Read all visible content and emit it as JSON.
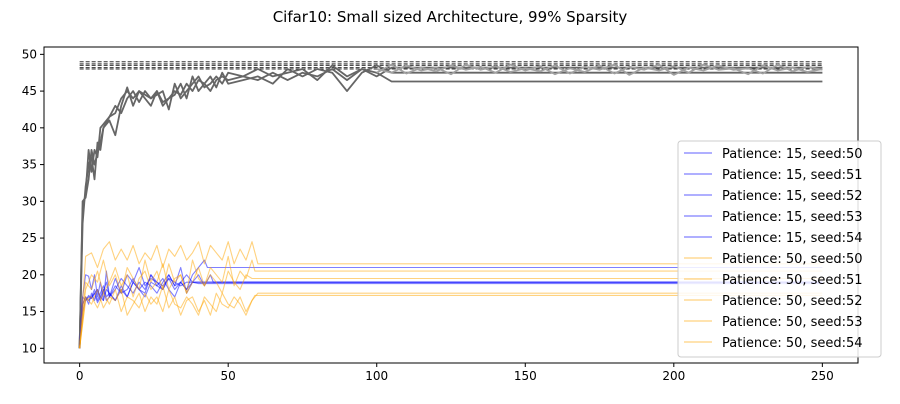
{
  "chart_data": {
    "type": "line",
    "title": "Cifar10: Small sized Architecture, 99% Sparsity",
    "xlabel": "",
    "ylabel": "",
    "xlim": [
      -12,
      262
    ],
    "ylim": [
      8,
      51
    ],
    "x_ticks": [
      0,
      50,
      100,
      150,
      200,
      250
    ],
    "y_ticks": [
      10,
      15,
      20,
      25,
      30,
      35,
      40,
      45,
      50
    ],
    "grid": false,
    "legend_position": "center-right",
    "colors": {
      "blue": "#0000ff",
      "orange": "#ffa500",
      "gray": "#666666",
      "light_gray": "#a0a0a0",
      "dashed": "#333333"
    },
    "reference_lines": [
      {
        "style": "dashed",
        "y": 49.0,
        "x": [
          0,
          250
        ]
      },
      {
        "style": "dashed",
        "y": 48.7,
        "x": [
          0,
          250
        ]
      },
      {
        "style": "dashed",
        "y": 48.5,
        "x": [
          0,
          250
        ]
      },
      {
        "style": "dashed",
        "y": 48.2,
        "x": [
          0,
          250
        ]
      },
      {
        "style": "dashed",
        "y": 48.0,
        "x": [
          0,
          250
        ]
      }
    ],
    "series": [
      {
        "name": "Patience: 15, seed:50",
        "color": "#0000ff",
        "final": 19.0,
        "stop": 45,
        "x": [
          0,
          1,
          2,
          3,
          4,
          5,
          6,
          7,
          8,
          9,
          10,
          12,
          14,
          16,
          18,
          20,
          22,
          24,
          26,
          28,
          30,
          32,
          34,
          36,
          38,
          40,
          42,
          44,
          45,
          250
        ],
        "y": [
          10,
          17,
          20,
          19.8,
          18,
          20,
          17,
          19,
          16.5,
          20.5,
          17,
          19.5,
          17.5,
          20,
          19,
          21,
          18.5,
          19.5,
          19,
          18,
          20,
          18.5,
          21,
          17.5,
          19,
          20,
          18.5,
          20,
          19,
          19
        ]
      },
      {
        "name": "Patience: 15, seed:51",
        "color": "#0000ff",
        "final": 21.0,
        "stop": 43,
        "x": [
          0,
          1,
          2,
          3,
          4,
          5,
          6,
          7,
          8,
          9,
          10,
          12,
          14,
          16,
          18,
          20,
          22,
          24,
          26,
          28,
          30,
          32,
          34,
          36,
          38,
          40,
          42,
          43,
          250
        ],
        "y": [
          10,
          16,
          17,
          16.5,
          17,
          18,
          16.5,
          17.5,
          18.5,
          17,
          17.5,
          16.5,
          18,
          17,
          19,
          18,
          17.5,
          20,
          18.5,
          19.5,
          18,
          17,
          19,
          18,
          20,
          21,
          22,
          21,
          21
        ]
      },
      {
        "name": "Patience: 15, seed:52",
        "color": "#0000ff",
        "final": 18.8,
        "stop": 40,
        "x": [
          0,
          1,
          2,
          3,
          4,
          5,
          6,
          7,
          8,
          9,
          10,
          12,
          14,
          16,
          18,
          20,
          22,
          24,
          26,
          28,
          30,
          32,
          34,
          36,
          38,
          40,
          250
        ],
        "y": [
          10,
          15,
          16.5,
          17,
          16.8,
          17.5,
          16.2,
          17,
          18,
          16.5,
          17,
          18.5,
          17.5,
          18,
          19.5,
          18,
          19,
          18.5,
          17.5,
          19,
          20,
          18.5,
          19,
          18,
          19,
          18.8,
          18.8
        ]
      },
      {
        "name": "Patience: 15, seed:53",
        "color": "#0000ff",
        "final": 19.0,
        "stop": 38,
        "x": [
          0,
          1,
          2,
          3,
          4,
          5,
          6,
          7,
          8,
          9,
          10,
          12,
          14,
          16,
          18,
          20,
          22,
          24,
          26,
          28,
          30,
          32,
          34,
          36,
          38,
          250
        ],
        "y": [
          10,
          16,
          17,
          16,
          17.5,
          16.5,
          18,
          17,
          16.5,
          18,
          17.5,
          16.5,
          18.5,
          17,
          19,
          18,
          17,
          19,
          18.5,
          18,
          19.5,
          18,
          19,
          20,
          19,
          19
        ]
      },
      {
        "name": "Patience: 15, seed:54",
        "color": "#0000ff",
        "final": 19.0,
        "stop": 36,
        "x": [
          0,
          1,
          2,
          3,
          4,
          5,
          6,
          7,
          8,
          9,
          10,
          12,
          14,
          16,
          18,
          20,
          22,
          24,
          26,
          28,
          30,
          32,
          34,
          36,
          250
        ],
        "y": [
          10,
          17,
          16.5,
          17.2,
          16.8,
          17.5,
          18,
          16.5,
          17.8,
          19,
          17,
          18,
          19.5,
          18.5,
          17.5,
          19,
          18,
          20,
          19,
          18.5,
          19.5,
          19,
          18.5,
          19,
          19
        ]
      },
      {
        "name": "Patience: 50, seed:50",
        "color": "#ffa500",
        "final": 21.5,
        "stop": 60,
        "x": [
          0,
          2,
          4,
          6,
          8,
          10,
          12,
          14,
          16,
          18,
          20,
          22,
          24,
          26,
          28,
          30,
          32,
          34,
          36,
          38,
          40,
          42,
          44,
          46,
          48,
          50,
          52,
          54,
          56,
          58,
          60,
          250
        ],
        "y": [
          10,
          22.5,
          23,
          21,
          23.5,
          24.5,
          22,
          23.5,
          22,
          24,
          21.5,
          23,
          22,
          24,
          21,
          23.5,
          22.5,
          24,
          22,
          23,
          24.5,
          21.5,
          24,
          23,
          22,
          24.5,
          21.5,
          23.5,
          22,
          24.5,
          21.5,
          21.5
        ]
      },
      {
        "name": "Patience: 50, seed:51",
        "color": "#ffa500",
        "final": 17.5,
        "stop": 60,
        "x": [
          0,
          2,
          4,
          6,
          8,
          10,
          12,
          14,
          16,
          18,
          20,
          22,
          24,
          26,
          28,
          30,
          32,
          34,
          36,
          38,
          40,
          42,
          44,
          46,
          48,
          50,
          52,
          54,
          56,
          58,
          60,
          250
        ],
        "y": [
          10,
          17,
          16,
          18,
          15.5,
          17,
          16.5,
          18,
          14.5,
          16,
          17.5,
          15,
          17,
          16,
          18.5,
          15.5,
          17,
          14.5,
          16.5,
          17,
          15,
          16.5,
          14.5,
          17.5,
          16,
          15.5,
          17,
          16,
          14.5,
          16.5,
          17.5,
          17.5
        ]
      },
      {
        "name": "Patience: 50, seed:52",
        "color": "#ffa500",
        "final": 20.5,
        "stop": 59,
        "x": [
          0,
          2,
          4,
          6,
          8,
          10,
          12,
          14,
          16,
          18,
          20,
          22,
          24,
          26,
          28,
          30,
          32,
          34,
          36,
          38,
          40,
          42,
          44,
          46,
          48,
          50,
          52,
          54,
          56,
          58,
          59,
          250
        ],
        "y": [
          10,
          18,
          20,
          19,
          22,
          18.5,
          20,
          17.5,
          21,
          19.5,
          18,
          22,
          19,
          20.5,
          18,
          21.5,
          19,
          20,
          17.5,
          22,
          19.5,
          18.5,
          21,
          20,
          19,
          22.5,
          18.5,
          20.5,
          19.5,
          22,
          20.5,
          20.5
        ]
      },
      {
        "name": "Patience: 50, seed:53",
        "color": "#ffa500",
        "final": 17.2,
        "stop": 59,
        "x": [
          0,
          2,
          4,
          6,
          8,
          10,
          12,
          14,
          16,
          18,
          20,
          22,
          24,
          26,
          28,
          30,
          32,
          34,
          36,
          38,
          40,
          42,
          44,
          46,
          48,
          50,
          52,
          54,
          56,
          58,
          59,
          250
        ],
        "y": [
          10,
          16.5,
          17,
          15.5,
          17.5,
          16,
          18,
          15,
          17,
          16.5,
          15.5,
          17.5,
          16,
          17,
          15,
          18,
          16,
          15.5,
          17,
          16,
          14.5,
          17,
          16,
          15,
          17.5,
          16,
          15.5,
          17,
          15,
          16.5,
          17.2,
          17.2
        ]
      },
      {
        "name": "Patience: 50, seed:54",
        "color": "#ffa500",
        "final": 19.5,
        "stop": 58,
        "x": [
          0,
          2,
          4,
          6,
          8,
          10,
          12,
          14,
          16,
          18,
          20,
          22,
          24,
          26,
          28,
          30,
          32,
          34,
          36,
          38,
          40,
          42,
          44,
          46,
          48,
          50,
          52,
          54,
          56,
          58,
          250
        ],
        "y": [
          10,
          19,
          18,
          20.5,
          17.5,
          19,
          21,
          18.5,
          20,
          17,
          19.5,
          20.5,
          18,
          19,
          21.5,
          18,
          19.5,
          20,
          17.5,
          19,
          21,
          18.5,
          20,
          19,
          17.5,
          20.5,
          19,
          18,
          20,
          19.5,
          19.5
        ]
      }
    ],
    "gray_series": [
      {
        "color": "#666666",
        "x": [
          0,
          1,
          2,
          3,
          4,
          5,
          6,
          7,
          8,
          10,
          12,
          14,
          16,
          18,
          20,
          22,
          24,
          26,
          28,
          30,
          32,
          34,
          36,
          38,
          40,
          42,
          44,
          46,
          48,
          50,
          55,
          60,
          65,
          70,
          75,
          80,
          85,
          90,
          95,
          100,
          105,
          250
        ],
        "y": [
          10,
          29,
          31,
          37,
          34,
          37,
          36,
          40,
          40.5,
          41.5,
          42,
          44,
          45,
          44,
          45,
          44.5,
          44,
          45,
          43,
          44,
          45,
          44.5,
          46,
          45,
          46.5,
          46,
          45,
          46.5,
          47,
          46.5,
          47,
          46.5,
          47.5,
          46.5,
          47.5,
          47,
          48,
          46.5,
          48,
          47.5,
          46.3,
          46.3
        ]
      },
      {
        "color": "#666666",
        "x": [
          0,
          1,
          2,
          3,
          4,
          5,
          6,
          7,
          8,
          10,
          12,
          14,
          16,
          18,
          20,
          22,
          24,
          26,
          28,
          30,
          32,
          34,
          36,
          38,
          40,
          42,
          44,
          46,
          48,
          50,
          55,
          60,
          65,
          70,
          75,
          80,
          85,
          90,
          95,
          100,
          105,
          250
        ],
        "y": [
          10,
          27,
          32,
          35,
          36,
          33,
          38,
          37,
          40,
          41,
          39,
          43,
          45.5,
          43,
          45,
          44,
          43,
          45,
          43.5,
          44,
          44.5,
          46,
          44,
          47,
          45,
          46,
          47,
          45.5,
          47.5,
          46,
          46.5,
          47,
          46,
          48,
          47,
          48,
          47.5,
          45,
          47.5,
          48.5,
          47.5,
          47.5
        ]
      },
      {
        "color": "#666666",
        "x": [
          0,
          1,
          2,
          3,
          4,
          5,
          6,
          7,
          8,
          10,
          12,
          14,
          16,
          18,
          20,
          22,
          24,
          26,
          28,
          30,
          32,
          34,
          36,
          38,
          40,
          42,
          44,
          46,
          48,
          50,
          55,
          60,
          65,
          70,
          75,
          80,
          85,
          90,
          95,
          100,
          105,
          250
        ],
        "y": [
          10,
          30,
          30.5,
          33,
          37,
          35,
          36.5,
          38,
          40,
          41.5,
          43,
          42,
          44,
          45,
          43.5,
          45,
          44,
          44.5,
          45,
          42.5,
          46,
          44,
          45,
          46,
          47,
          45.5,
          46,
          47,
          46,
          47.5,
          47,
          48,
          47,
          47.5,
          48,
          46.5,
          48.5,
          47,
          48,
          47,
          48.2,
          48.2
        ]
      },
      {
        "color": "#a0a0a0",
        "x": [
          100,
          105,
          110,
          115,
          120,
          125,
          130,
          135,
          140,
          145,
          150,
          155,
          160,
          165,
          170,
          175,
          180,
          185,
          190,
          195,
          200,
          205,
          210,
          215,
          220,
          225,
          230,
          235,
          240,
          245,
          250
        ],
        "y": [
          48,
          47.5,
          48.5,
          47.8,
          48.2,
          47.3,
          48.6,
          47.9,
          48.4,
          47.6,
          48.1,
          47.7,
          48.5,
          47.4,
          48.3,
          47.9,
          48.6,
          47.2,
          48.2,
          47.8,
          48.4,
          47.5,
          48.6,
          47.9,
          48.1,
          47.3,
          48.5,
          47.8,
          48.2,
          47.6,
          48
        ]
      },
      {
        "color": "#a0a0a0",
        "x": [
          100,
          105,
          110,
          115,
          120,
          125,
          130,
          135,
          140,
          145,
          150,
          155,
          160,
          165,
          170,
          175,
          180,
          185,
          190,
          195,
          200,
          205,
          210,
          215,
          220,
          225,
          230,
          235,
          240,
          245,
          250
        ],
        "y": [
          47.5,
          48.6,
          47.4,
          48.2,
          47.7,
          48.5,
          47.9,
          48.3,
          47.5,
          48.6,
          47.8,
          48.4,
          47.3,
          48.1,
          47.6,
          48.5,
          47.4,
          48.3,
          47.9,
          48.6,
          47.2,
          48.2,
          47.8,
          48.5,
          47.9,
          48.1,
          47.4,
          48.6,
          47.7,
          48.3,
          47.9
        ]
      }
    ]
  }
}
